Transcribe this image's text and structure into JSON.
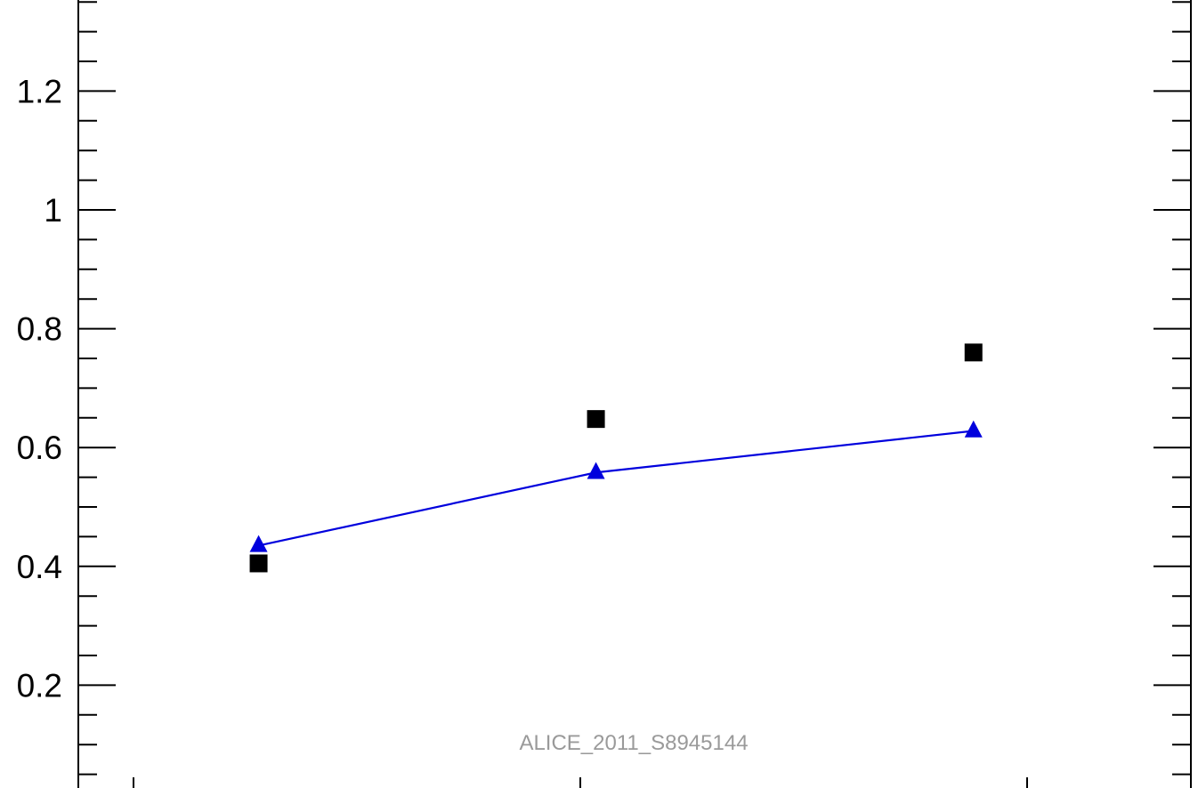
{
  "chart_data": {
    "type": "scatter",
    "title": "",
    "xlabel": "",
    "ylabel": "",
    "watermark": "ALICE_2011_S8945144",
    "xlim": [
      0,
      3
    ],
    "ylim": [
      0.03,
      1.35
    ],
    "yticks_major": [
      {
        "value": 0.2,
        "label": "0.2"
      },
      {
        "value": 0.4,
        "label": "0.4"
      },
      {
        "value": 0.6,
        "label": "0.6"
      },
      {
        "value": 0.8,
        "label": "0.8"
      },
      {
        "value": 1.0,
        "label": "1"
      },
      {
        "value": 1.2,
        "label": "1.2"
      }
    ],
    "ytick_minor_step": 0.05,
    "xticks": [
      0.15,
      1.15,
      2.15
    ],
    "grid": false,
    "series": [
      {
        "marker": "square",
        "color": "#000000",
        "connected": false,
        "points": [
          {
            "x": 0.43,
            "y": 0.405
          },
          {
            "x": 1.185,
            "y": 0.648
          },
          {
            "x": 2.03,
            "y": 0.76
          }
        ]
      },
      {
        "marker": "triangle",
        "color": "#0000dd",
        "connected": true,
        "points": [
          {
            "x": 0.43,
            "y": 0.435
          },
          {
            "x": 1.185,
            "y": 0.558
          },
          {
            "x": 2.03,
            "y": 0.628
          }
        ]
      }
    ]
  }
}
